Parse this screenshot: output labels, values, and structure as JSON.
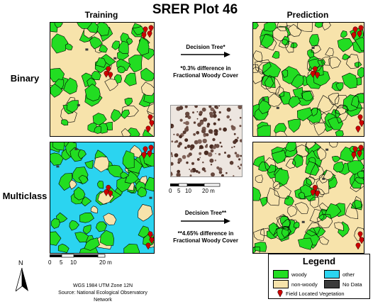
{
  "title": "SRER Plot 46",
  "columns": {
    "training": "Training",
    "prediction": "Prediction"
  },
  "rows": {
    "binary": "Binary",
    "multiclass": "Multiclass"
  },
  "binary_arrow": {
    "label": "Decision Tree*",
    "note": "*0.3% difference in Fractional Woody Cover"
  },
  "multiclass_arrow": {
    "label": "Decision Tree**",
    "note": "**4.65% difference in Fractional Woody Cover"
  },
  "photo_scale": {
    "ticks": [
      "0",
      "5",
      "10",
      "20 m"
    ]
  },
  "map_scale": {
    "ticks": [
      "0",
      "5",
      "10",
      "20 m"
    ]
  },
  "north": "N",
  "credits": {
    "projection": "WGS 1984 UTM Zone 12N",
    "source": "Source: National Ecological Observatory Network"
  },
  "legend": {
    "title": "Legend",
    "items": [
      {
        "label": "woody",
        "color": "#22dd22"
      },
      {
        "label": "other",
        "color": "#2bd4f0"
      },
      {
        "label": "non-woody",
        "color": "#f7e3ab"
      },
      {
        "label": "No Data",
        "color": "#3a3a3a"
      }
    ],
    "marker_label": "Field Located Vegetation",
    "marker_color": "#cc0000"
  },
  "colors": {
    "woody": "#22dd22",
    "other": "#2bd4f0",
    "nonwoody": "#f7e3ab",
    "nodata": "#3a3a3a",
    "marker": "#cc0000"
  }
}
